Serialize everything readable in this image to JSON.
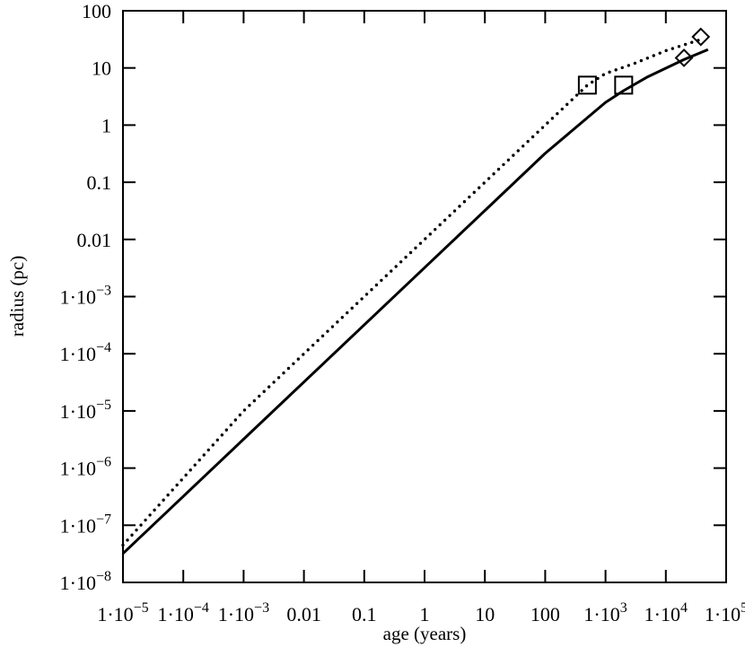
{
  "chart_data": {
    "type": "line",
    "title": "",
    "xlabel": "age (years)",
    "ylabel": "radius (pc)",
    "xscale": "log",
    "yscale": "log",
    "xlim": [
      1e-05,
      100000.0
    ],
    "ylim": [
      1e-08,
      100
    ],
    "grid": false,
    "legend": "none",
    "x_ticks": [
      {
        "value": 1e-05,
        "mant": "1·10",
        "exp": "−5"
      },
      {
        "value": 0.0001,
        "mant": "1·10",
        "exp": "−4"
      },
      {
        "value": 0.001,
        "mant": "1·10",
        "exp": "−3"
      },
      {
        "value": 0.01,
        "mant": "0.01",
        "exp": ""
      },
      {
        "value": 0.1,
        "mant": "0.1",
        "exp": ""
      },
      {
        "value": 1,
        "mant": "1",
        "exp": ""
      },
      {
        "value": 10,
        "mant": "10",
        "exp": ""
      },
      {
        "value": 100,
        "mant": "100",
        "exp": ""
      },
      {
        "value": 1000,
        "mant": "1·10",
        "exp": "3"
      },
      {
        "value": 10000,
        "mant": "1·10",
        "exp": "4"
      },
      {
        "value": 100000,
        "mant": "1·10",
        "exp": "5"
      }
    ],
    "y_ticks": [
      {
        "value": 100,
        "mant": "100",
        "exp": ""
      },
      {
        "value": 10,
        "mant": "10",
        "exp": ""
      },
      {
        "value": 1,
        "mant": "1",
        "exp": ""
      },
      {
        "value": 0.1,
        "mant": "0.1",
        "exp": ""
      },
      {
        "value": 0.01,
        "mant": "0.01",
        "exp": ""
      },
      {
        "value": 0.001,
        "mant": "1·10",
        "exp": "−3"
      },
      {
        "value": 0.0001,
        "mant": "1·10",
        "exp": "−4"
      },
      {
        "value": 1e-05,
        "mant": "1·10",
        "exp": "−5"
      },
      {
        "value": 1e-06,
        "mant": "1·10",
        "exp": "−6"
      },
      {
        "value": 1e-07,
        "mant": "1·10",
        "exp": "−7"
      },
      {
        "value": 1e-08,
        "mant": "1·10",
        "exp": "−8"
      }
    ],
    "series": [
      {
        "style": "solid",
        "color": "#000000",
        "points": [
          [
            1e-05,
            3.2e-08
          ],
          [
            0.001,
            3.2e-06
          ],
          [
            1,
            0.0032
          ],
          [
            10,
            0.032
          ],
          [
            100,
            0.32
          ],
          [
            1000,
            2.5
          ],
          [
            2000,
            4.0
          ],
          [
            5000,
            7.0
          ],
          [
            20000,
            14
          ],
          [
            50000,
            21
          ]
        ]
      },
      {
        "style": "dotted",
        "color": "#000000",
        "points": [
          [
            1e-05,
            4.5e-08
          ],
          [
            0.001,
            1e-05
          ],
          [
            1,
            0.01
          ],
          [
            10,
            0.1
          ],
          [
            100,
            1.0
          ],
          [
            500,
            5.0
          ],
          [
            1000,
            8.0
          ],
          [
            3000,
            12
          ],
          [
            10000,
            20
          ],
          [
            40000,
            32
          ]
        ]
      }
    ],
    "markers": [
      {
        "shape": "square",
        "x": 500,
        "y": 5.0
      },
      {
        "shape": "square",
        "x": 2000,
        "y": 5.0
      },
      {
        "shape": "diamond",
        "x": 20000,
        "y": 15
      },
      {
        "shape": "diamond",
        "x": 38000,
        "y": 35
      }
    ]
  }
}
